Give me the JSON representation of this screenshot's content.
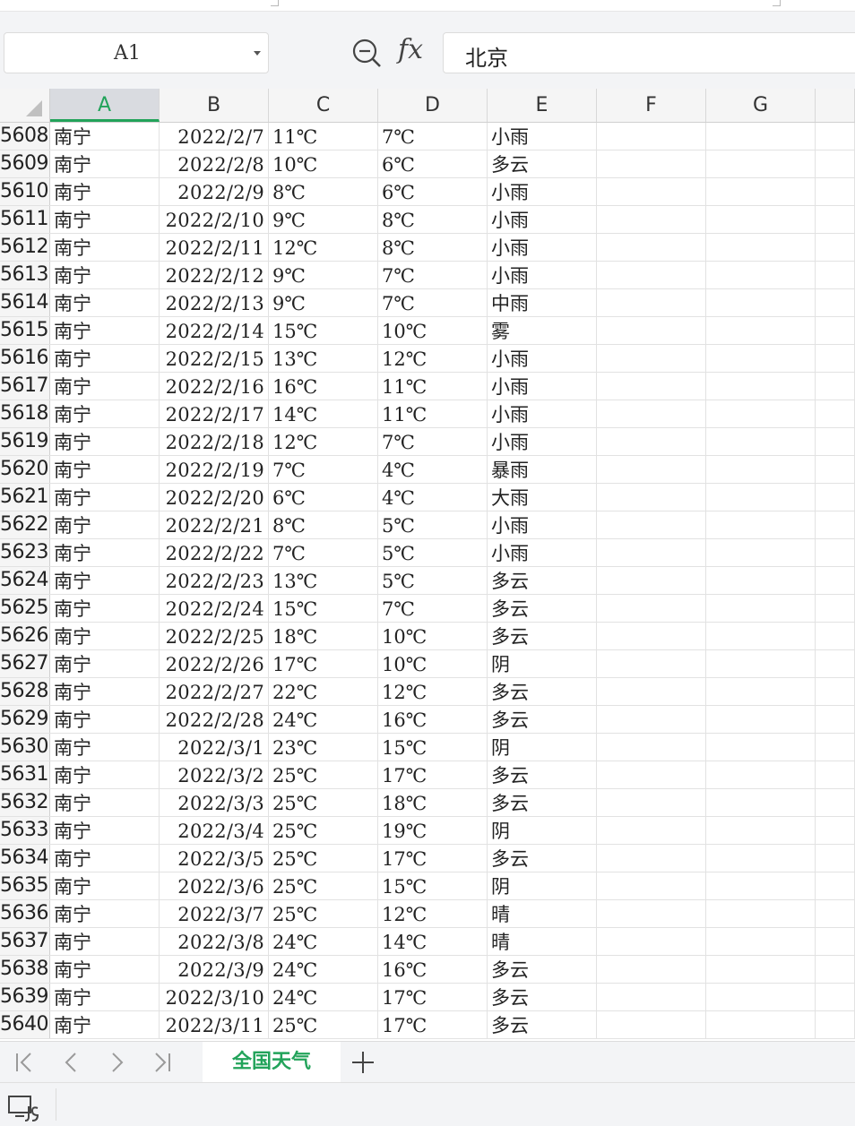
{
  "formula_bar": {
    "name_box": "A1",
    "fx_label": "fx",
    "formula_value": "北京"
  },
  "columns": [
    "A",
    "B",
    "C",
    "D",
    "E",
    "F",
    "G"
  ],
  "selected_column": "A",
  "rows": [
    {
      "num": "5608",
      "a": "南宁",
      "b": "2022/2/7",
      "c": "11℃",
      "d": "7℃",
      "e": "小雨"
    },
    {
      "num": "5609",
      "a": "南宁",
      "b": "2022/2/8",
      "c": "10℃",
      "d": "6℃",
      "e": "多云"
    },
    {
      "num": "5610",
      "a": "南宁",
      "b": "2022/2/9",
      "c": "8℃",
      "d": "6℃",
      "e": "小雨"
    },
    {
      "num": "5611",
      "a": "南宁",
      "b": "2022/2/10",
      "c": "9℃",
      "d": "8℃",
      "e": "小雨"
    },
    {
      "num": "5612",
      "a": "南宁",
      "b": "2022/2/11",
      "c": "12℃",
      "d": "8℃",
      "e": "小雨"
    },
    {
      "num": "5613",
      "a": "南宁",
      "b": "2022/2/12",
      "c": "9℃",
      "d": "7℃",
      "e": "小雨"
    },
    {
      "num": "5614",
      "a": "南宁",
      "b": "2022/2/13",
      "c": "9℃",
      "d": "7℃",
      "e": "中雨"
    },
    {
      "num": "5615",
      "a": "南宁",
      "b": "2022/2/14",
      "c": "15℃",
      "d": "10℃",
      "e": "雾"
    },
    {
      "num": "5616",
      "a": "南宁",
      "b": "2022/2/15",
      "c": "13℃",
      "d": "12℃",
      "e": "小雨"
    },
    {
      "num": "5617",
      "a": "南宁",
      "b": "2022/2/16",
      "c": "16℃",
      "d": "11℃",
      "e": "小雨"
    },
    {
      "num": "5618",
      "a": "南宁",
      "b": "2022/2/17",
      "c": "14℃",
      "d": "11℃",
      "e": "小雨"
    },
    {
      "num": "5619",
      "a": "南宁",
      "b": "2022/2/18",
      "c": "12℃",
      "d": "7℃",
      "e": "小雨"
    },
    {
      "num": "5620",
      "a": "南宁",
      "b": "2022/2/19",
      "c": "7℃",
      "d": "4℃",
      "e": "暴雨"
    },
    {
      "num": "5621",
      "a": "南宁",
      "b": "2022/2/20",
      "c": "6℃",
      "d": "4℃",
      "e": "大雨"
    },
    {
      "num": "5622",
      "a": "南宁",
      "b": "2022/2/21",
      "c": "8℃",
      "d": "5℃",
      "e": "小雨"
    },
    {
      "num": "5623",
      "a": "南宁",
      "b": "2022/2/22",
      "c": "7℃",
      "d": "5℃",
      "e": "小雨"
    },
    {
      "num": "5624",
      "a": "南宁",
      "b": "2022/2/23",
      "c": "13℃",
      "d": "5℃",
      "e": "多云"
    },
    {
      "num": "5625",
      "a": "南宁",
      "b": "2022/2/24",
      "c": "15℃",
      "d": "7℃",
      "e": "多云"
    },
    {
      "num": "5626",
      "a": "南宁",
      "b": "2022/2/25",
      "c": "18℃",
      "d": "10℃",
      "e": "多云"
    },
    {
      "num": "5627",
      "a": "南宁",
      "b": "2022/2/26",
      "c": "17℃",
      "d": "10℃",
      "e": "阴"
    },
    {
      "num": "5628",
      "a": "南宁",
      "b": "2022/2/27",
      "c": "22℃",
      "d": "12℃",
      "e": "多云"
    },
    {
      "num": "5629",
      "a": "南宁",
      "b": "2022/2/28",
      "c": "24℃",
      "d": "16℃",
      "e": "多云"
    },
    {
      "num": "5630",
      "a": "南宁",
      "b": "2022/3/1",
      "c": "23℃",
      "d": "15℃",
      "e": "阴"
    },
    {
      "num": "5631",
      "a": "南宁",
      "b": "2022/3/2",
      "c": "25℃",
      "d": "17℃",
      "e": "多云"
    },
    {
      "num": "5632",
      "a": "南宁",
      "b": "2022/3/3",
      "c": "25℃",
      "d": "18℃",
      "e": "多云"
    },
    {
      "num": "5633",
      "a": "南宁",
      "b": "2022/3/4",
      "c": "25℃",
      "d": "19℃",
      "e": "阴"
    },
    {
      "num": "5634",
      "a": "南宁",
      "b": "2022/3/5",
      "c": "25℃",
      "d": "17℃",
      "e": "多云"
    },
    {
      "num": "5635",
      "a": "南宁",
      "b": "2022/3/6",
      "c": "25℃",
      "d": "15℃",
      "e": "阴"
    },
    {
      "num": "5636",
      "a": "南宁",
      "b": "2022/3/7",
      "c": "25℃",
      "d": "12℃",
      "e": "晴"
    },
    {
      "num": "5637",
      "a": "南宁",
      "b": "2022/3/8",
      "c": "24℃",
      "d": "14℃",
      "e": "晴"
    },
    {
      "num": "5638",
      "a": "南宁",
      "b": "2022/3/9",
      "c": "24℃",
      "d": "16℃",
      "e": "多云"
    },
    {
      "num": "5639",
      "a": "南宁",
      "b": "2022/3/10",
      "c": "24℃",
      "d": "17℃",
      "e": "多云"
    },
    {
      "num": "5640",
      "a": "南宁",
      "b": "2022/3/11",
      "c": "25℃",
      "d": "17℃",
      "e": "多云"
    }
  ],
  "sheet_tabs": [
    {
      "label": "全国天气",
      "active": true
    }
  ],
  "colors": {
    "accent": "#22a35a",
    "header_bg": "#f5f5f5",
    "toolbar_bg": "#f3f4f6"
  },
  "icons": {
    "nav_first": "first-sheet-icon",
    "nav_prev": "prev-sheet-icon",
    "nav_next": "next-sheet-icon",
    "nav_last": "last-sheet-icon",
    "add": "add-sheet-icon",
    "zoom": "zoom-icon",
    "macro": "macro-record-icon"
  }
}
